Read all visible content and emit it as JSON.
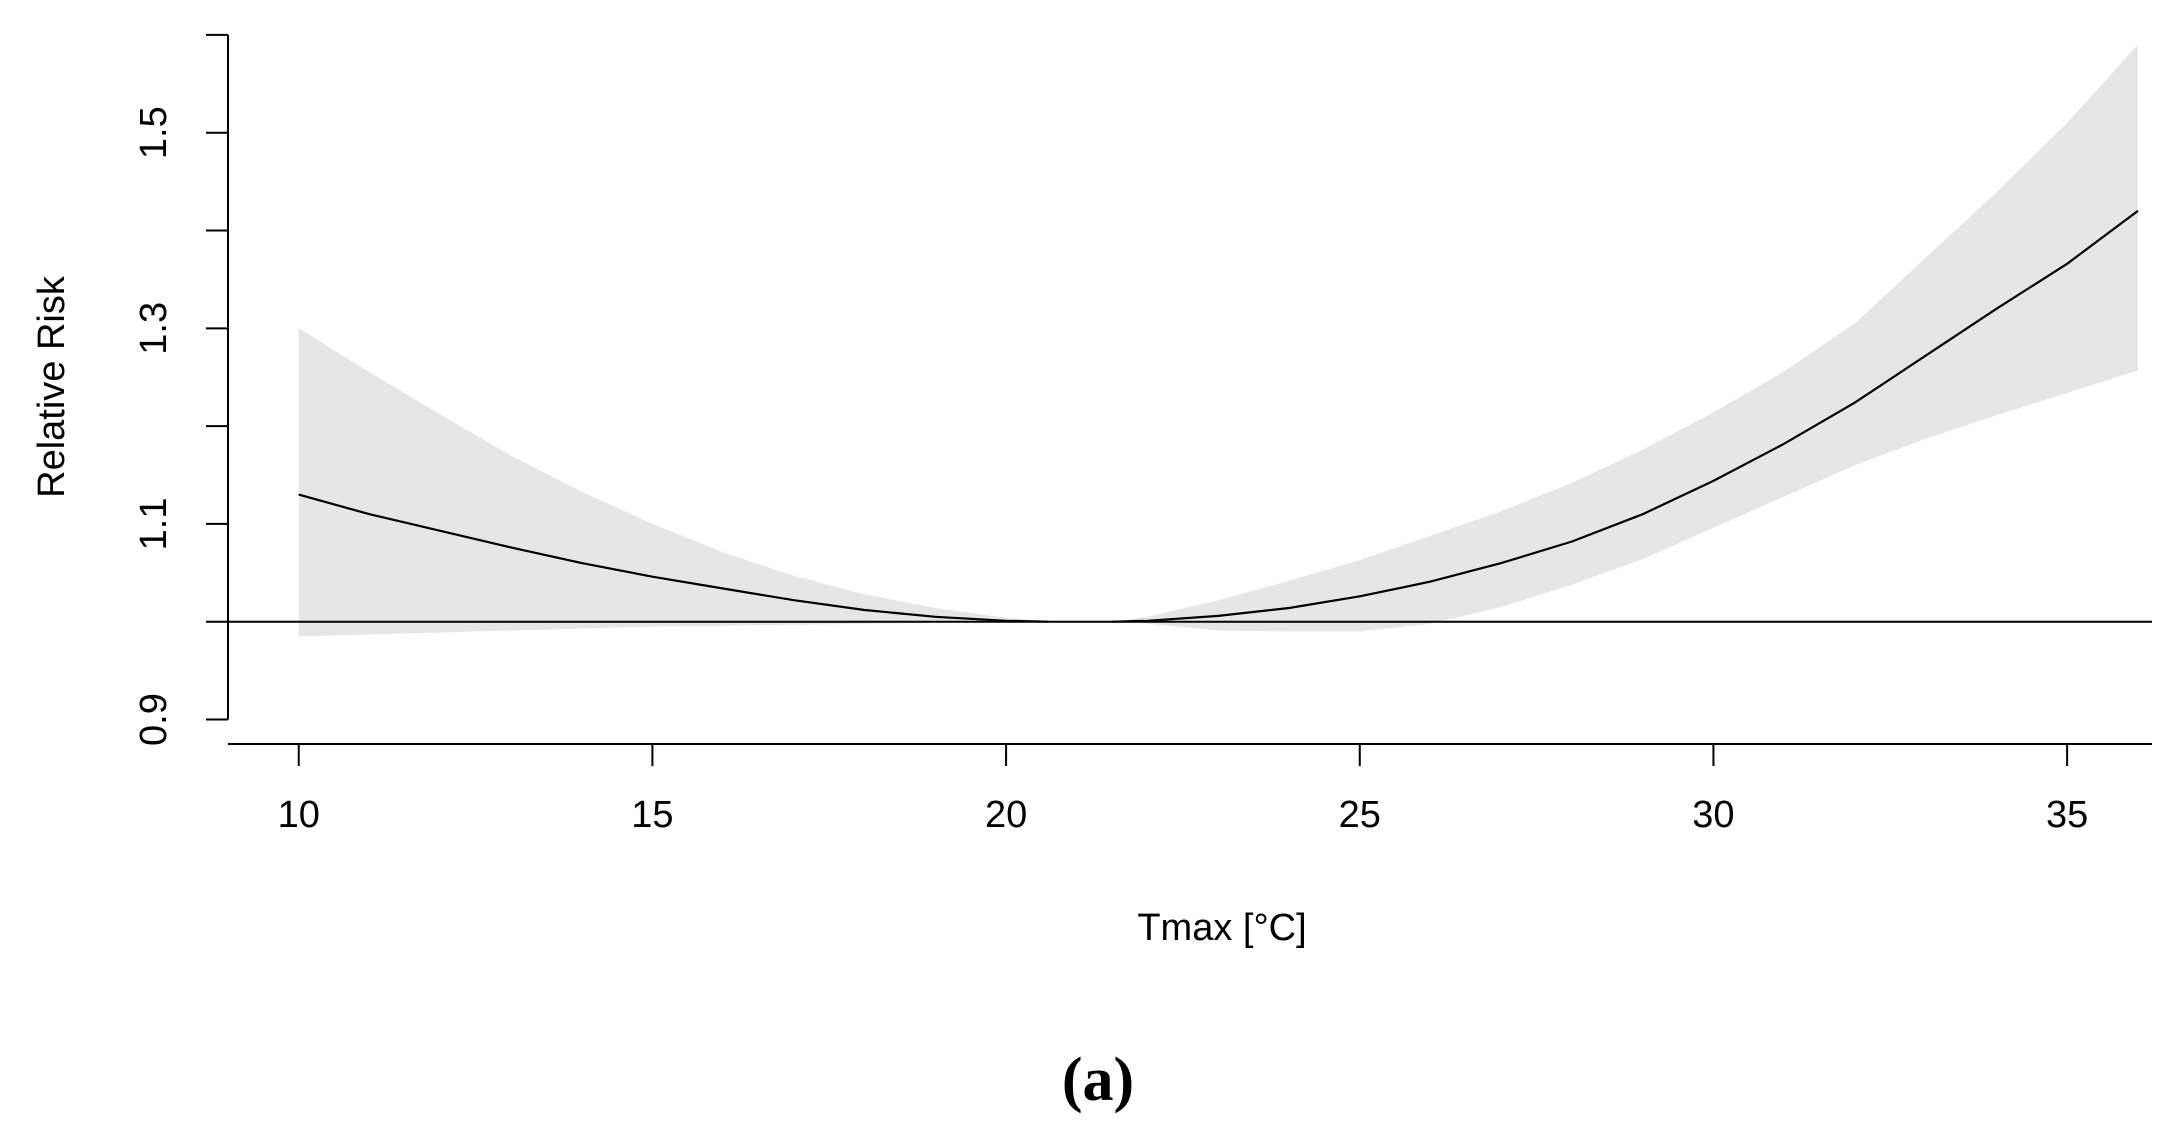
{
  "chart_data": {
    "type": "line",
    "title": "",
    "xlabel": "Tmax [°C]",
    "ylabel": "Relative Risk",
    "caption": "(a)",
    "xlim": [
      9,
      36.2
    ],
    "ylim": [
      0.875,
      1.605
    ],
    "xticks": [
      10,
      15,
      20,
      25,
      30,
      35
    ],
    "xtick_labels": [
      "10",
      "15",
      "20",
      "25",
      "30",
      "35"
    ],
    "yticks": [
      0.9,
      1.0,
      1.1,
      1.2,
      1.3,
      1.4,
      1.5,
      1.6
    ],
    "ytick_labels": [
      "0.9",
      "",
      "1.1",
      "",
      "1.3",
      "",
      "1.5",
      ""
    ],
    "reference_line": 1.0,
    "grid": false,
    "legend": "none",
    "colors": {
      "line": "#000000",
      "band": "#e6e6e6",
      "reference": "#000000"
    },
    "series": [
      {
        "x": [
          10,
          11,
          12,
          13,
          14,
          15,
          16,
          17,
          18,
          19,
          20,
          20.6
        ],
        "y": [
          1.13,
          1.11,
          1.093,
          1.076,
          1.06,
          1.046,
          1.034,
          1.022,
          1.012,
          1.005,
          1.001,
          1.0
        ],
        "lower": [
          0.985,
          0.987,
          0.989,
          0.991,
          0.993,
          0.995,
          0.996,
          0.997,
          0.998,
          0.999,
          1.0,
          1.0
        ],
        "upper": [
          1.3,
          1.255,
          1.212,
          1.17,
          1.133,
          1.1,
          1.071,
          1.047,
          1.028,
          1.014,
          1.004,
          1.001
        ]
      },
      {
        "x": [
          21.5,
          22,
          23,
          24,
          25,
          26,
          27,
          28,
          29,
          30,
          31,
          32,
          33,
          34,
          35,
          36
        ],
        "y": [
          1.0,
          1.001,
          1.006,
          1.014,
          1.026,
          1.041,
          1.06,
          1.082,
          1.11,
          1.144,
          1.182,
          1.224,
          1.272,
          1.32,
          1.366,
          1.42
        ],
        "lower": [
          1.0,
          0.998,
          0.991,
          0.99,
          0.99,
          0.998,
          1.015,
          1.038,
          1.064,
          1.096,
          1.128,
          1.16,
          1.187,
          1.211,
          1.234,
          1.257
        ],
        "upper": [
          1.0,
          1.005,
          1.022,
          1.042,
          1.063,
          1.088,
          1.113,
          1.142,
          1.176,
          1.214,
          1.256,
          1.305,
          1.372,
          1.439,
          1.51,
          1.59
        ]
      }
    ]
  }
}
